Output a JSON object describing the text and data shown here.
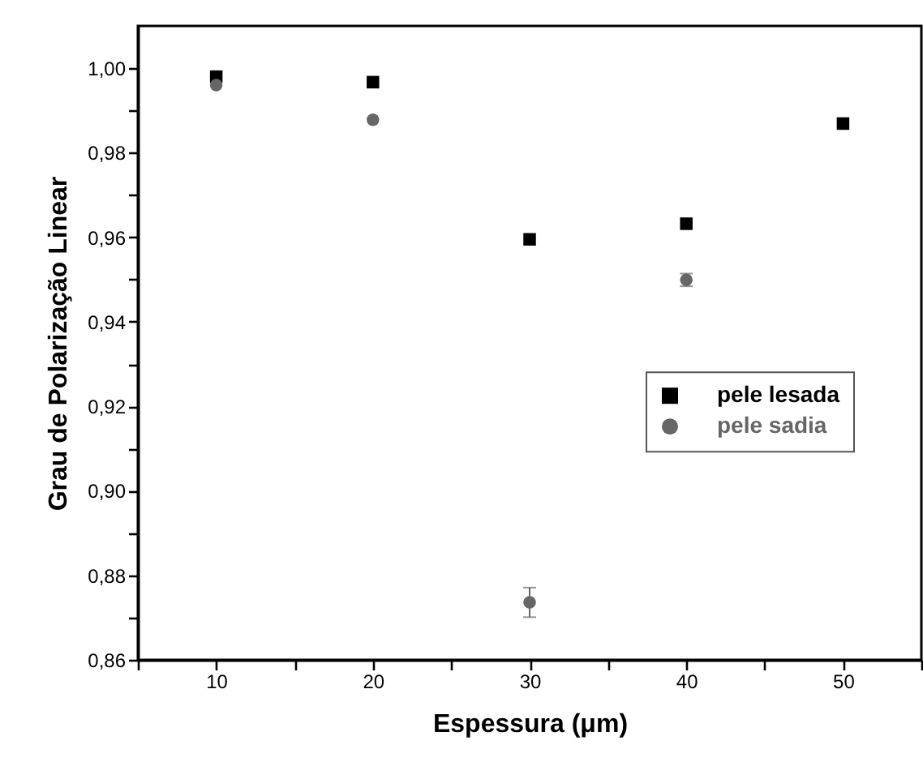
{
  "chart_data": {
    "type": "scatter",
    "xlabel": "Espessura (μm)",
    "ylabel": "Grau de Polarização Linear",
    "xlim": [
      5,
      55
    ],
    "ylim": [
      0.86,
      1.01
    ],
    "xticks": [
      {
        "value": 5,
        "label": null
      },
      10,
      {
        "value": 15,
        "label": null
      },
      20,
      {
        "value": 25,
        "label": null
      },
      30,
      {
        "value": 35,
        "label": null
      },
      40,
      {
        "value": 45,
        "label": null
      },
      50,
      {
        "value": 55,
        "label": null
      }
    ],
    "yticks": [
      {
        "value": 0.86,
        "label": "0,86"
      },
      {
        "value": 0.87,
        "label": null
      },
      {
        "value": 0.88,
        "label": "0,88"
      },
      {
        "value": 0.89,
        "label": null
      },
      {
        "value": 0.9,
        "label": "0,90"
      },
      {
        "value": 0.91,
        "label": null
      },
      {
        "value": 0.92,
        "label": "0,92"
      },
      {
        "value": 0.93,
        "label": null
      },
      {
        "value": 0.94,
        "label": "0,94"
      },
      {
        "value": 0.95,
        "label": null
      },
      {
        "value": 0.96,
        "label": "0,96"
      },
      {
        "value": 0.97,
        "label": null
      },
      {
        "value": 0.98,
        "label": "0,98"
      },
      {
        "value": 0.99,
        "label": null
      },
      {
        "value": 1.0,
        "label": "1,00"
      }
    ],
    "grid": false,
    "legend": "right",
    "x": [
      10,
      20,
      30,
      40,
      50
    ],
    "series": [
      {
        "name": "pele lesada",
        "color": "#000000",
        "marker": "square",
        "values": [
          0.998,
          0.9967,
          0.9595,
          0.9632,
          0.9869
        ]
      },
      {
        "name": "pele sadia",
        "color": "#666666",
        "marker": "circle",
        "x": [
          10,
          20,
          30,
          40
        ],
        "values": [
          0.996,
          0.9878,
          0.8736,
          0.9499
        ],
        "errors": [
          null,
          null,
          0.0035,
          0.0015
        ]
      }
    ]
  }
}
